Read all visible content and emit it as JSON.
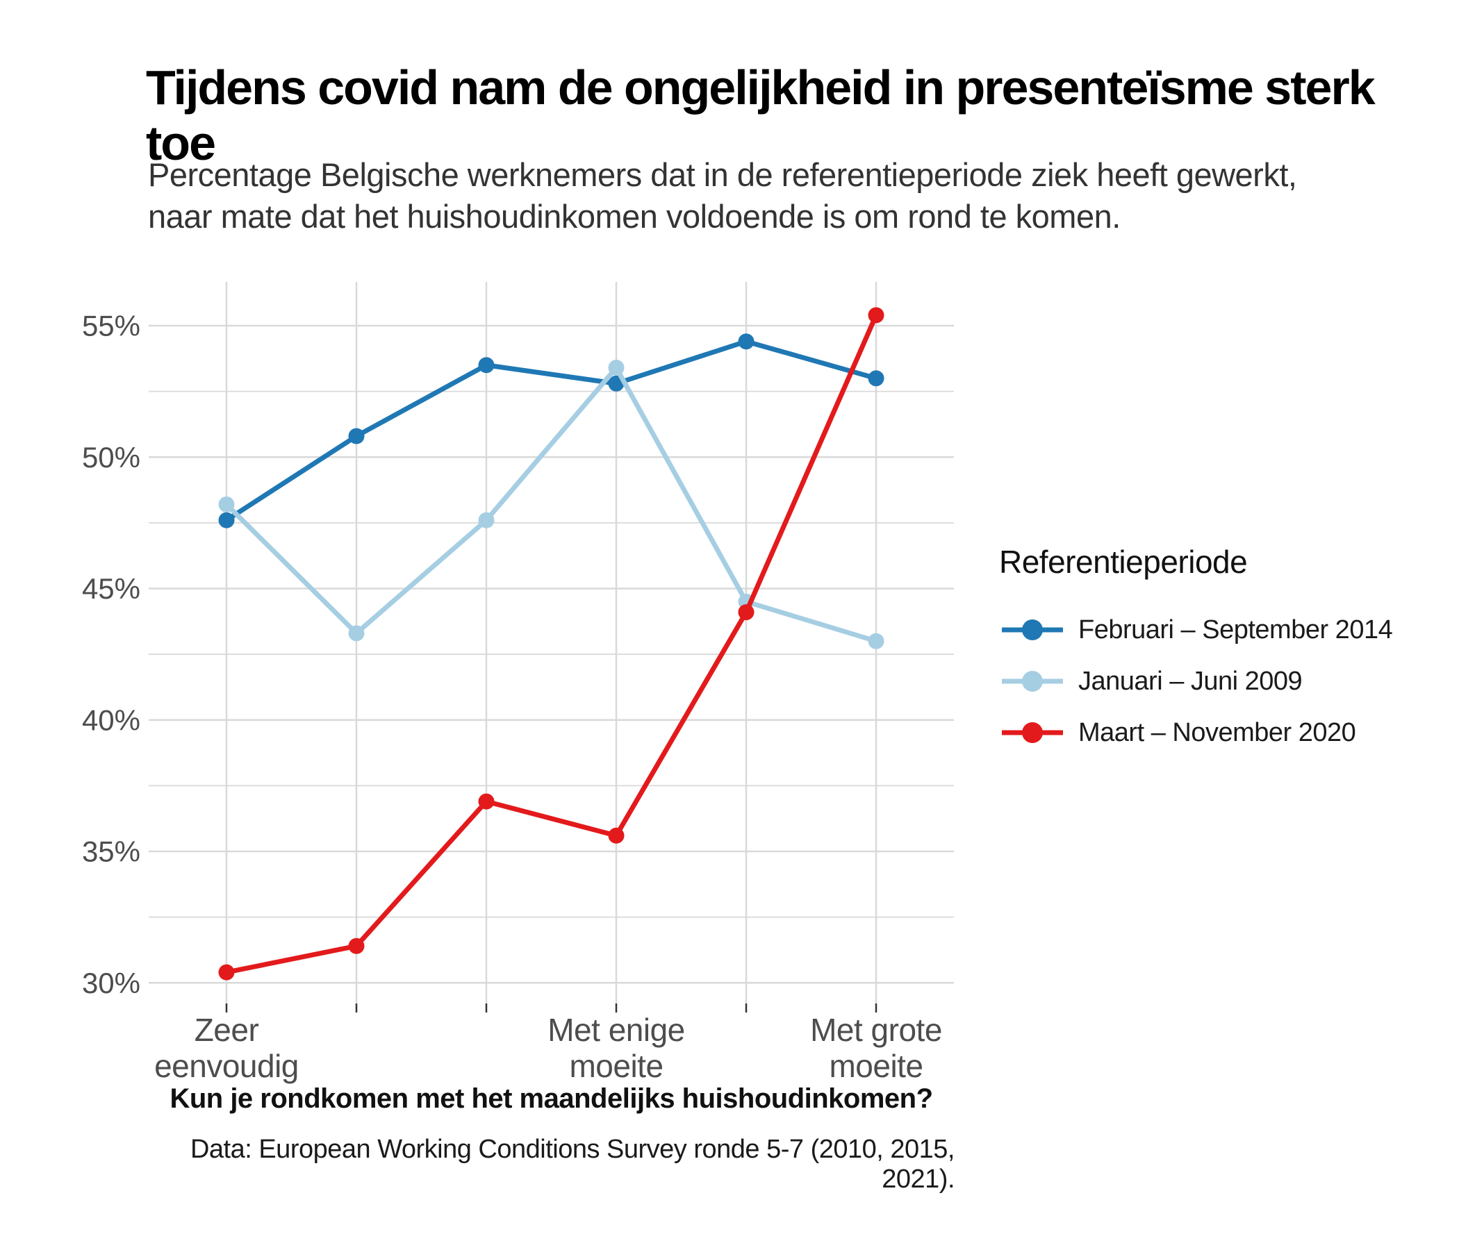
{
  "header": {
    "title": "Tijdens covid nam de ongelijkheid in presenteïsme sterk toe",
    "subtitle_lines": [
      "Percentage Belgische werknemers dat in de referentieperiode ziek heeft gewerkt,",
      "naar mate dat het huishoudinkomen voldoende is om rond te komen."
    ]
  },
  "legend": {
    "title": "Referentieperiode",
    "items": [
      {
        "label": "Februari – September 2014",
        "color": "#1F78B4"
      },
      {
        "label": "Januari – Juni 2009",
        "color": "#A6CEE3"
      },
      {
        "label": "Maart – November 2020",
        "color": "#E31A1C"
      }
    ]
  },
  "x_axis": {
    "title": "Kun je rondkomen met het maandelijks huishoudinkomen?"
  },
  "caption": "Data: European Working Conditions Survey ronde 5-7 (2010, 2015, 2021).",
  "chart_data": {
    "type": "line",
    "categories": [
      [
        "Zeer",
        "eenvoudig"
      ],
      [
        ""
      ],
      [
        ""
      ],
      [
        "Met enige",
        "moeite"
      ],
      [
        ""
      ],
      [
        "Met grote",
        "moeite"
      ]
    ],
    "series": [
      {
        "name": "Februari – September 2014",
        "color": "#1F78B4",
        "values": [
          47.6,
          50.8,
          53.5,
          52.8,
          54.4,
          53.0
        ]
      },
      {
        "name": "Januari – Juni 2009",
        "color": "#A6CEE3",
        "values": [
          48.2,
          43.3,
          47.6,
          53.4,
          44.5,
          43.0
        ]
      },
      {
        "name": "Maart – November 2020",
        "color": "#E31A1C",
        "values": [
          30.4,
          31.4,
          36.9,
          35.6,
          44.1,
          55.4
        ]
      }
    ],
    "title": "Tijdens covid nam de ongelijkheid in presenteïsme sterk toe",
    "xlabel": "Kun je rondkomen met het maandelijks huishoudinkomen?",
    "ylabel": "",
    "ylim": [
      30,
      55
    ],
    "y_major_ticks": [
      30,
      35,
      40,
      45,
      50,
      55
    ],
    "y_tick_labels": [
      "30%",
      "35%",
      "40%",
      "45%",
      "50%",
      "55%"
    ],
    "y_minor_ticks": [
      32.5,
      37.5,
      42.5,
      47.5,
      52.5
    ],
    "grid": "on",
    "legend_position": "right",
    "colors": {
      "grid": "#D9D9D9",
      "axis_text": "#4D4D4D",
      "tick_mark": "#333333",
      "background": "#FFFFFF"
    }
  }
}
